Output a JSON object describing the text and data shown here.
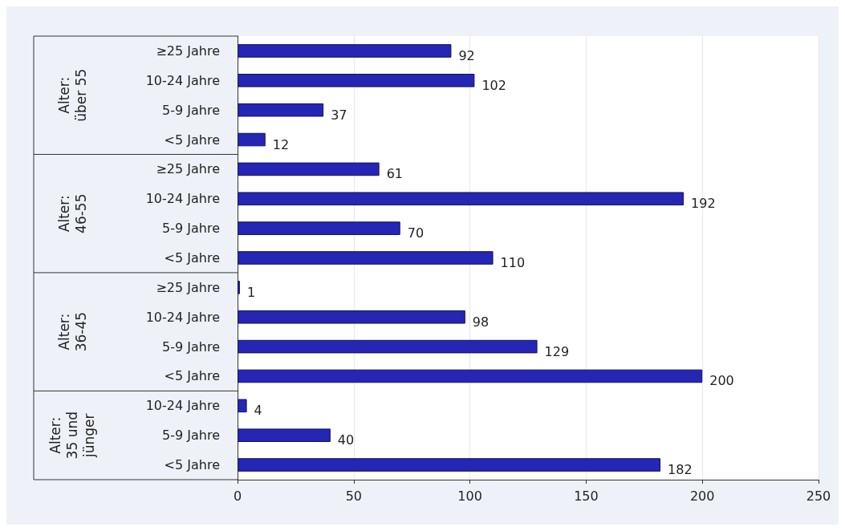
{
  "chart_data": {
    "type": "bar",
    "orientation": "horizontal",
    "categories": [
      "≥25 Jahre",
      "10-24 Jahre",
      "5-9 Jahre",
      "<5 Jahre",
      "≥25 Jahre",
      "10-24 Jahre",
      "5-9 Jahre",
      "<5 Jahre",
      "≥25 Jahre",
      "10-24 Jahre",
      "5-9 Jahre",
      "<5 Jahre",
      "10-24 Jahre",
      "5-9 Jahre",
      "<5 Jahre"
    ],
    "values": [
      92,
      102,
      37,
      12,
      61,
      192,
      70,
      110,
      1,
      98,
      129,
      200,
      4,
      40,
      182
    ],
    "color": "#2626b4",
    "annotations": [
      "Alter:\nüber 55",
      "Alter:\n46-55",
      "Alter:\n36-45",
      "Alter:\n35 und\njünger"
    ],
    "xlim": [
      0,
      250
    ],
    "xticks": [
      0,
      50,
      100,
      150,
      200,
      250
    ],
    "grid": "x",
    "data_labels": true
  }
}
